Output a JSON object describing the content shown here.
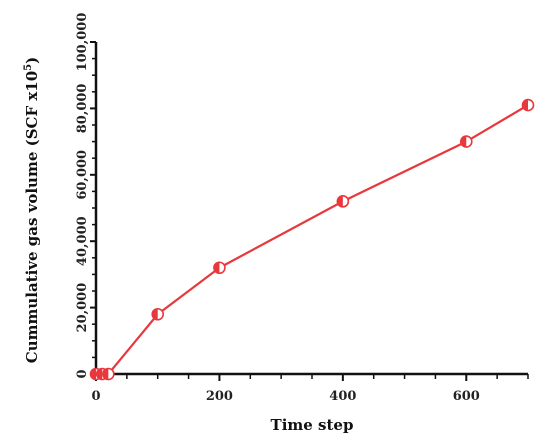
{
  "chart_data": {
    "type": "line",
    "title": "",
    "xlabel": "Time step",
    "ylabel_main": "Cummulative gas volume (SCF x10",
    "ylabel_exponent": "5",
    "ylabel_close": ")",
    "xlim": [
      0,
      700
    ],
    "ylim": [
      0,
      100000
    ],
    "x_ticks": [
      0,
      200,
      400,
      600
    ],
    "x_tick_labels": [
      "0",
      "200",
      "400",
      "600"
    ],
    "y_ticks": [
      0,
      20000,
      40000,
      60000,
      80000,
      100000
    ],
    "y_tick_labels": [
      "0",
      "20,000",
      "40,000",
      "60,000",
      "80,000",
      "100,000"
    ],
    "grid": false,
    "legend": "none",
    "series": [
      {
        "color": "#e8383d",
        "marker": "half-filled-circle",
        "x": [
          0,
          10,
          20,
          100,
          200,
          400,
          600,
          700
        ],
        "y": [
          0,
          0,
          0,
          18000,
          32000,
          52000,
          70000,
          81000
        ]
      }
    ]
  }
}
